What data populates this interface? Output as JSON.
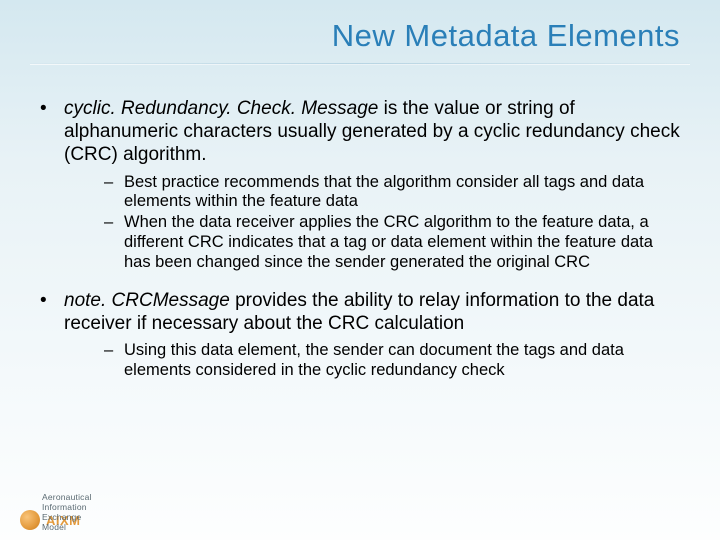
{
  "title": "New Metadata Elements",
  "bullets": [
    {
      "em": "cyclic. Redundancy. Check. Message",
      "rest": " is the value or string of alphanumeric characters usually generated by a cyclic redundancy check (CRC) algorithm.",
      "subs": [
        "Best practice recommends that the algorithm consider all tags and data elements within the feature data",
        "When the data receiver applies the CRC algorithm to the feature data, a different CRC indicates that a tag or data element within the feature data has been changed since the sender generated the original CRC"
      ]
    },
    {
      "em": "note. CRCMessage",
      "rest": " provides the ability to relay information to the data receiver if necessary about the CRC calculation",
      "subs": [
        "Using this data element, the sender can document the tags and data elements considered in the cyclic redundancy check"
      ]
    }
  ],
  "footer": {
    "logo_text": "AIXM",
    "subtitle": "Aeronautical Information Exchange Model"
  },
  "colors": {
    "title": "#2a7fb8",
    "logo": "#e39a3c",
    "text": "#000000"
  }
}
